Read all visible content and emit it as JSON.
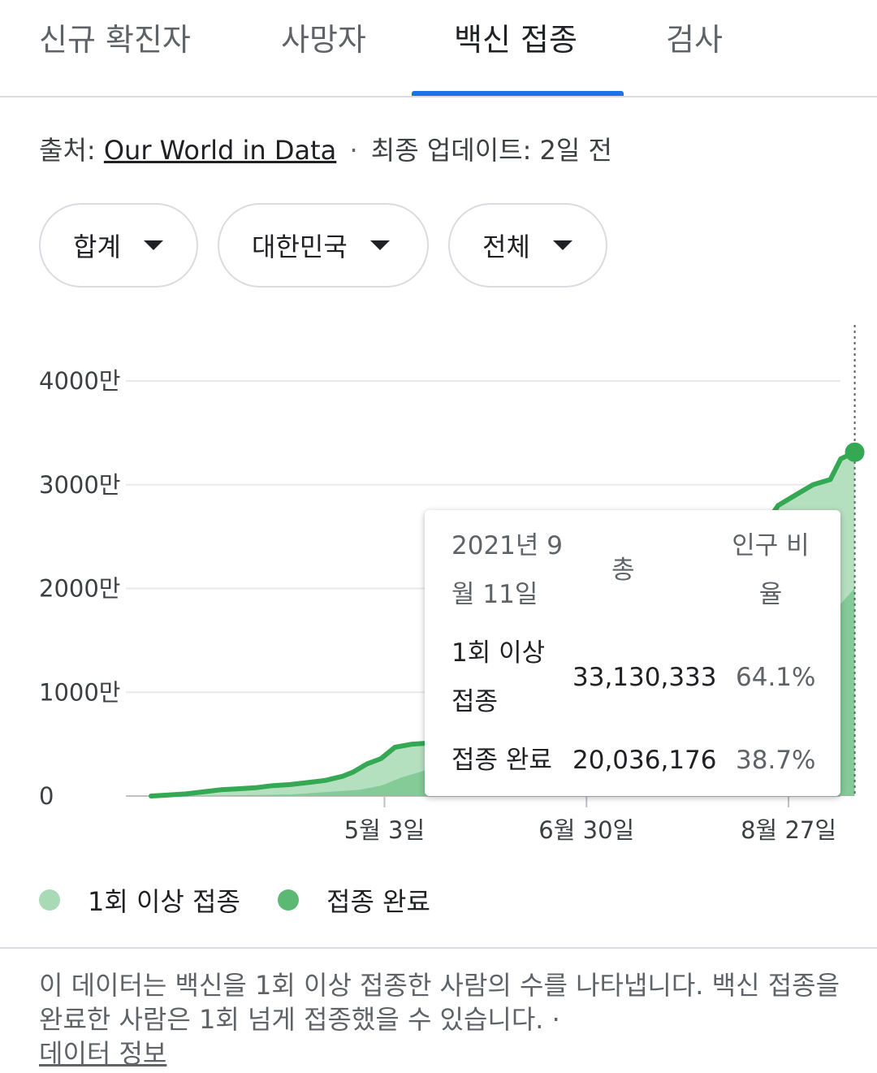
{
  "tabs": [
    {
      "label": "신규 확진자",
      "active": false
    },
    {
      "label": "사망자",
      "active": false
    },
    {
      "label": "백신 접종",
      "active": true
    },
    {
      "label": "검사",
      "active": false
    }
  ],
  "source": {
    "prefix": "출처: ",
    "link": "Our World in Data",
    "separator": "·",
    "updated": "최종 업데이트: 2일 전"
  },
  "filters": [
    {
      "label": "합계"
    },
    {
      "label": "대한민국"
    },
    {
      "label": "전체"
    }
  ],
  "colors": {
    "accent": "#1a73e8",
    "one_dose": "#a8dab5",
    "fully": "#34a853",
    "fully_legend": "#5bb974"
  },
  "chart_data": {
    "type": "area",
    "unit": "만",
    "y_ticks": [
      "4000만",
      "3000만",
      "2000만",
      "1000만",
      "0"
    ],
    "y_tick_values": [
      4000,
      3000,
      2000,
      1000,
      0
    ],
    "ylim": [
      0,
      4000
    ],
    "x_ticks": [
      "5월 3일",
      "6월 30일",
      "8월 27일"
    ],
    "x_tick_days": [
      67,
      125,
      183
    ],
    "series": [
      {
        "name": "1회 이상 접종",
        "points": [
          [
            0,
            0
          ],
          [
            5,
            10
          ],
          [
            10,
            20
          ],
          [
            15,
            40
          ],
          [
            20,
            60
          ],
          [
            25,
            70
          ],
          [
            30,
            80
          ],
          [
            35,
            100
          ],
          [
            40,
            110
          ],
          [
            45,
            130
          ],
          [
            50,
            150
          ],
          [
            55,
            190
          ],
          [
            58,
            230
          ],
          [
            62,
            310
          ],
          [
            66,
            360
          ],
          [
            70,
            470
          ],
          [
            75,
            500
          ],
          [
            80,
            510
          ],
          [
            85,
            530
          ],
          [
            90,
            560
          ],
          [
            95,
            600
          ],
          [
            100,
            650
          ],
          [
            105,
            700
          ],
          [
            110,
            780
          ],
          [
            115,
            900
          ],
          [
            120,
            1050
          ],
          [
            125,
            1250
          ],
          [
            130,
            1450
          ],
          [
            135,
            1600
          ],
          [
            140,
            1700
          ],
          [
            145,
            1750
          ],
          [
            150,
            1800
          ],
          [
            155,
            1850
          ],
          [
            160,
            1950
          ],
          [
            165,
            2100
          ],
          [
            170,
            2300
          ],
          [
            175,
            2550
          ],
          [
            180,
            2800
          ],
          [
            185,
            2900
          ],
          [
            190,
            3000
          ],
          [
            195,
            3050
          ],
          [
            198,
            3250
          ],
          [
            202,
            3313
          ]
        ]
      },
      {
        "name": "접종 완료",
        "points": [
          [
            0,
            0
          ],
          [
            20,
            5
          ],
          [
            40,
            15
          ],
          [
            60,
            60
          ],
          [
            66,
            100
          ],
          [
            72,
            180
          ],
          [
            80,
            260
          ],
          [
            90,
            330
          ],
          [
            100,
            380
          ],
          [
            110,
            420
          ],
          [
            120,
            480
          ],
          [
            130,
            560
          ],
          [
            140,
            650
          ],
          [
            150,
            780
          ],
          [
            160,
            900
          ],
          [
            170,
            1050
          ],
          [
            180,
            1250
          ],
          [
            190,
            1550
          ],
          [
            202,
            2004
          ]
        ]
      }
    ],
    "tooltip": {
      "date": "2021년 9월 11일",
      "col_total": "총",
      "col_pct": "인구 비율",
      "rows": [
        {
          "label": "1회 이상 접종",
          "total": "33,130,333",
          "pct": "64.1%"
        },
        {
          "label": "접종 완료",
          "total": "20,036,176",
          "pct": "38.7%"
        }
      ]
    }
  },
  "legend": [
    {
      "label": "1회 이상 접종"
    },
    {
      "label": "접종 완료"
    }
  ],
  "footnote": {
    "text": "이 데이터는 백신을 1회 이상 접종한 사람의 수를 나타냅니다. 백신 접종을 완료한 사람은 1회 넘게 접종했을 수 있습니다.  · ",
    "link": "데이터 정보"
  }
}
